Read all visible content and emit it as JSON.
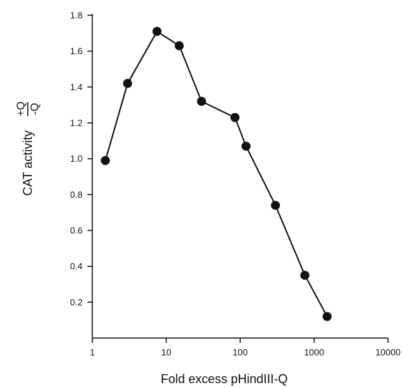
{
  "chart_data": {
    "type": "line",
    "xscale": "log",
    "xlabel": "Fold excess pHindIII-Q",
    "ylabel": "CAT activity",
    "ylabel_fraction": {
      "numerator": "+Q",
      "denominator": "-Q"
    },
    "xlim": [
      1,
      10000
    ],
    "ylim": [
      0,
      1.8
    ],
    "xticks": [
      1,
      10,
      100,
      1000,
      10000
    ],
    "xtick_labels": [
      "1",
      "10",
      "100",
      "1000",
      "10000"
    ],
    "yticks": [
      0.2,
      0.4,
      0.6,
      0.8,
      1.0,
      1.2,
      1.4,
      1.6,
      1.8
    ],
    "ytick_labels": [
      "0.2",
      "0.4",
      "0.6",
      "0.8",
      "1.0",
      "1.2",
      "1.4",
      "1.6",
      "1.8"
    ],
    "grid": false,
    "series": [
      {
        "x": [
          1.5,
          3,
          7.5,
          15,
          30,
          85,
          120,
          300,
          750,
          1500
        ],
        "y": [
          0.99,
          1.42,
          1.71,
          1.63,
          1.32,
          1.23,
          1.07,
          0.74,
          0.35,
          0.12
        ]
      }
    ]
  }
}
